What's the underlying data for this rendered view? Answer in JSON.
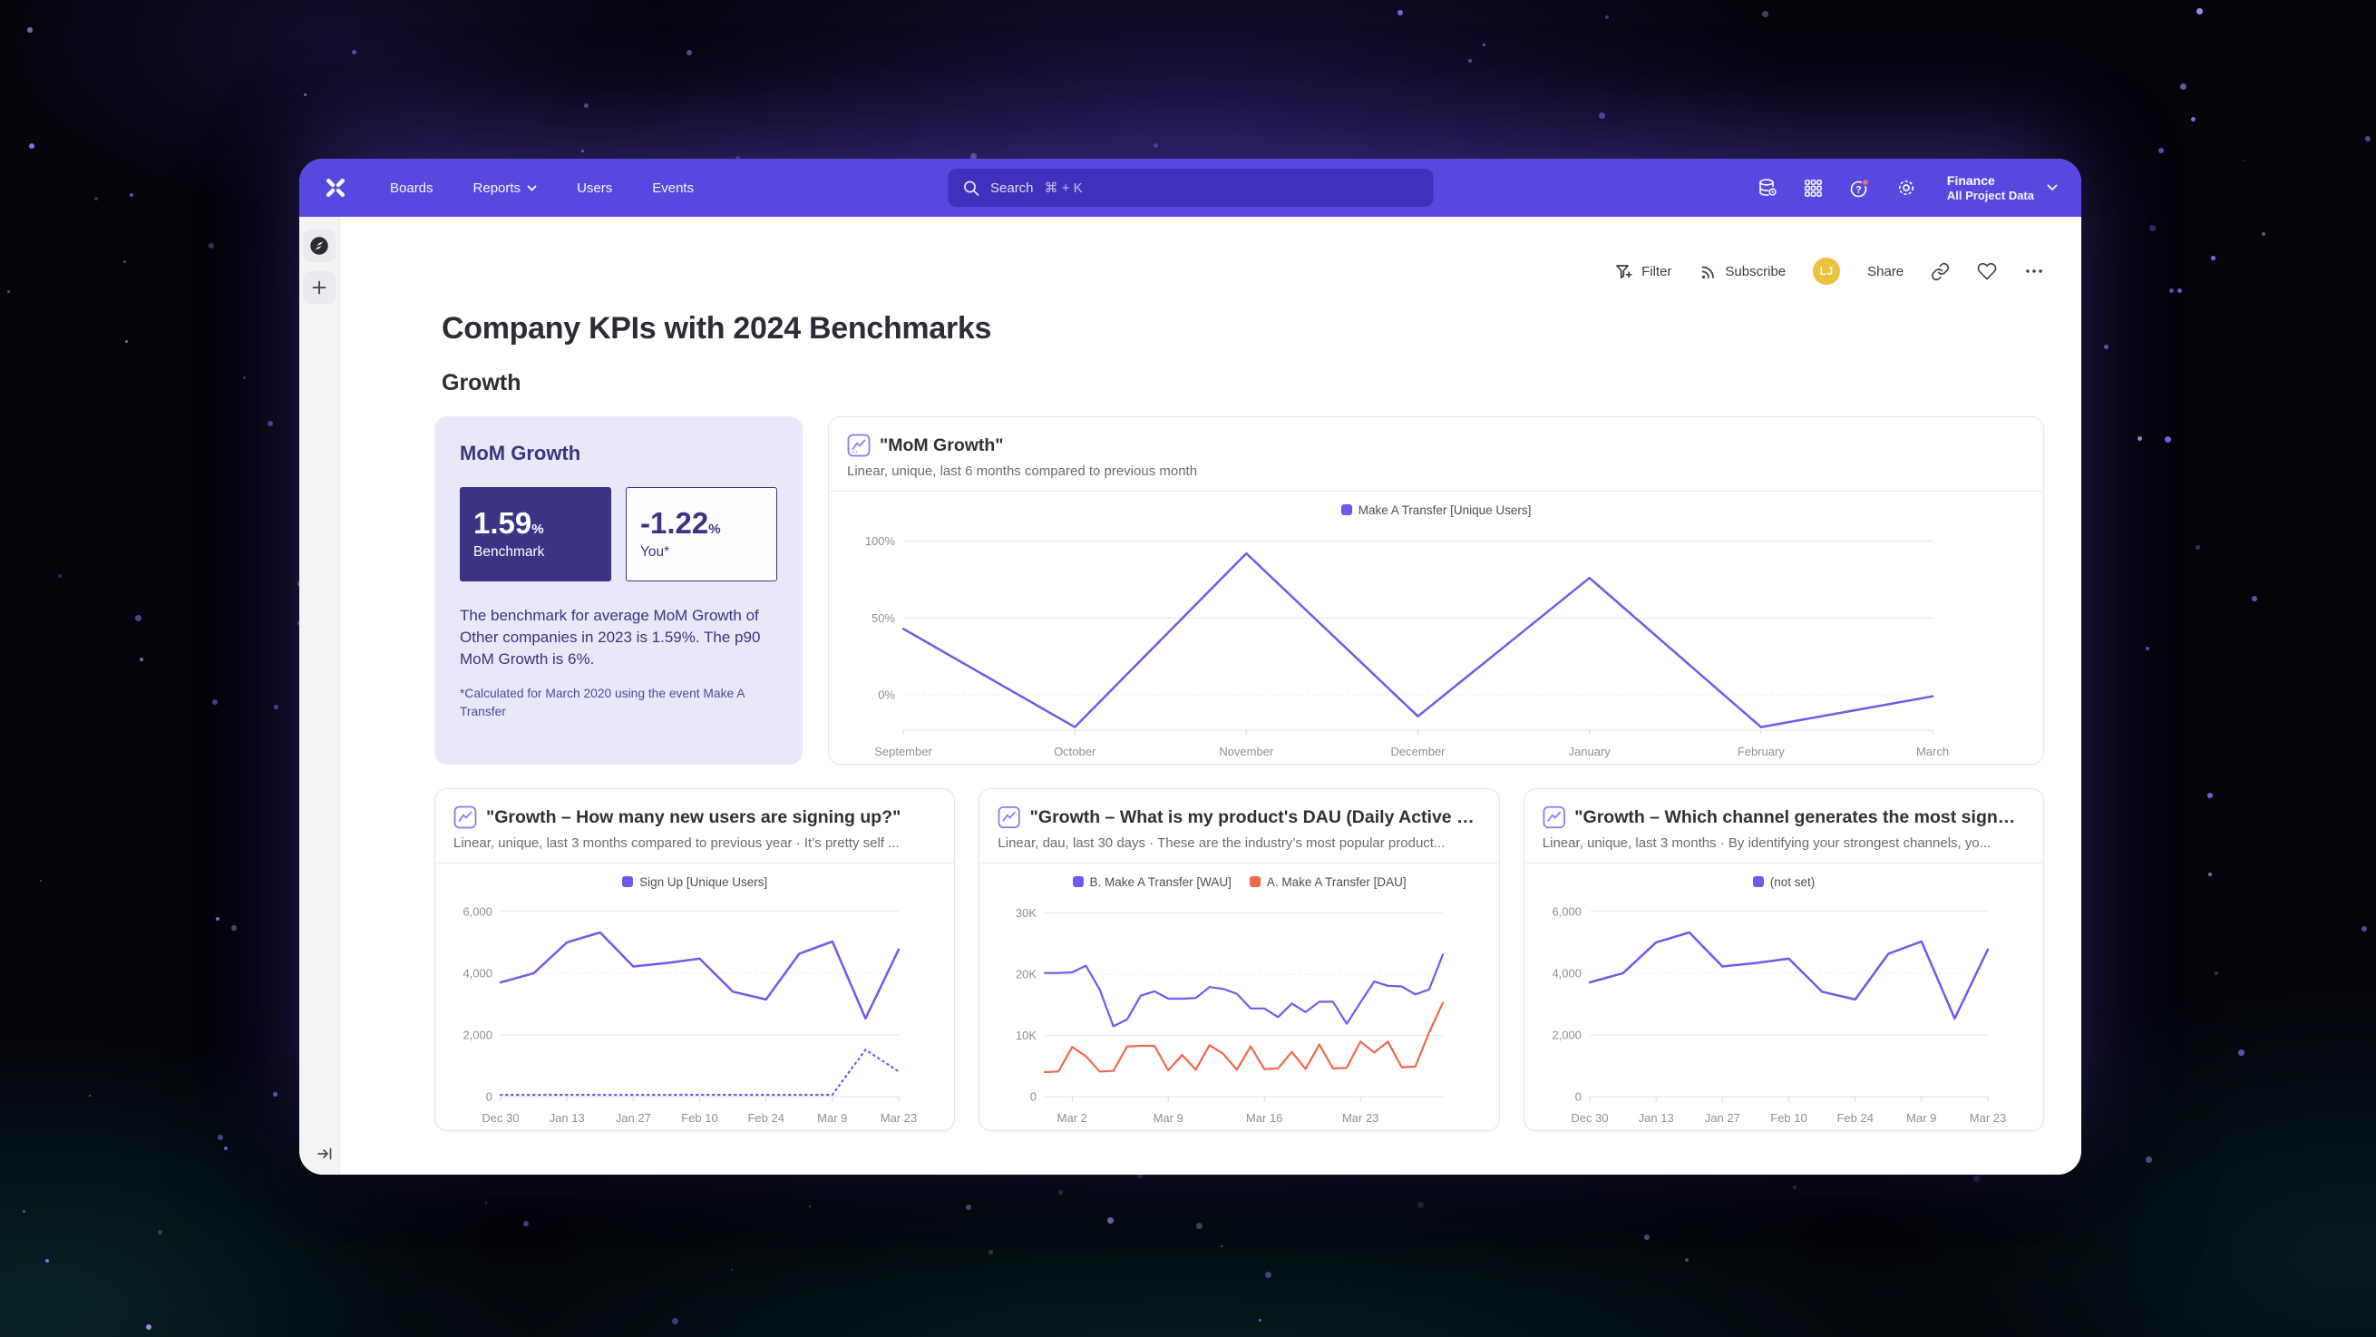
{
  "nav": {
    "items": [
      {
        "label": "Boards"
      },
      {
        "label": "Reports",
        "has_chevron": true
      },
      {
        "label": "Users"
      },
      {
        "label": "Events"
      }
    ],
    "search": {
      "label": "Search",
      "shortcut": "⌘ + K"
    },
    "project": {
      "name": "Finance",
      "scope": "All Project Data"
    }
  },
  "toolbar": {
    "filter_label": "Filter",
    "subscribe_label": "Subscribe",
    "avatar_initials": "LJ",
    "share_label": "Share"
  },
  "page": {
    "title": "Company KPIs with 2024 Benchmarks",
    "section_heading": "Growth"
  },
  "benchmark_card": {
    "title": "MoM Growth",
    "benchmark_value": "1.59",
    "benchmark_unit": "%",
    "benchmark_label": "Benchmark",
    "you_value": "-1.22",
    "you_unit": "%",
    "you_label": "You*",
    "description": "The benchmark for average MoM Growth of Other companies in 2023 is 1.59%. The p90 MoM Growth is 6%.",
    "footnote": "*Calculated for March 2020 using the event Make A Transfer"
  },
  "icons": {
    "search": "magnifier",
    "data": "database-gear",
    "apps": "grid-3x3",
    "help": "?-circle with orange badge",
    "settings": "gear",
    "filter": "funnel-plus",
    "subscribe": "rss",
    "link": "chain",
    "favorite": "heart",
    "more": "•••",
    "compass": "compass",
    "add": "+",
    "collapse": "→|",
    "chevron": "▾"
  },
  "colors": {
    "nav": "#5748e0",
    "accent_purple": "#6e5bed",
    "orange": "#f2684b",
    "navy": "#3b3383",
    "card_lavender": "#e9e8f8",
    "avatar_yellow": "#edc33d"
  },
  "charts": [
    {
      "id": "mom-growth",
      "type": "line",
      "title": "\"MoM Growth\"",
      "subtitle": "Linear, unique, last 6 months compared to previous month",
      "categories": [
        "September",
        "October",
        "November",
        "December",
        "January",
        "February",
        "March"
      ],
      "series": [
        {
          "name": "Make A Transfer [Unique Users]",
          "color": "#6e5bed",
          "values": [
            43,
            -21,
            92,
            -14,
            76,
            -21,
            -1
          ]
        }
      ],
      "ylim": [
        -23,
        108
      ],
      "yticks": [
        {
          "label": "100%",
          "value": 100
        },
        {
          "label": "50%",
          "value": 50
        },
        {
          "label": "0%",
          "value": 0,
          "dashed": true
        }
      ],
      "xtick_indices": [
        0,
        1,
        2,
        3,
        4,
        5,
        6
      ],
      "legend_position": "top-center",
      "grid": true
    },
    {
      "id": "new-user-signups",
      "type": "line",
      "title": "\"Growth – How many new users are signing up?\"",
      "subtitle": "Linear, unique, last 3 months compared to previous year · It’s pretty self ...",
      "categories": [
        "Dec 30",
        "Jan 6",
        "Jan 13",
        "Jan 20",
        "Jan 27",
        "Feb 3",
        "Feb 10",
        "Feb 17",
        "Feb 24",
        "Mar 2",
        "Mar 9",
        "Mar 16",
        "Mar 23"
      ],
      "series": [
        {
          "name": "Sign Up [Unique Users]",
          "color": "#6e5bed",
          "values": [
            3700,
            4000,
            5000,
            5320,
            4220,
            4330,
            4470,
            3400,
            3150,
            4630,
            5030,
            2530,
            4770
          ]
        },
        {
          "name": "Sign Up [Unique Users] — previous year",
          "color": "#6e5bed",
          "dashed": true,
          "hide_legend": true,
          "values": [
            60,
            60,
            60,
            60,
            60,
            60,
            60,
            60,
            60,
            60,
            60,
            1520,
            815
          ]
        }
      ],
      "ylim": [
        0,
        6350
      ],
      "yticks": [
        {
          "label": "6,000",
          "value": 6000
        },
        {
          "label": "4,000",
          "value": 4000,
          "dashed": true
        },
        {
          "label": "2,000",
          "value": 2000
        },
        {
          "label": "0",
          "value": 0
        }
      ],
      "xtick_indices": [
        0,
        2,
        4,
        6,
        8,
        10,
        12
      ],
      "legend_position": "top-center",
      "grid": true
    },
    {
      "id": "product-dau",
      "type": "line",
      "title": "\"Growth – What is my product's DAU (Daily Active Us...",
      "subtitle": "Linear, dau, last 30 days · These are the industry’s most popular product...",
      "categories": [
        "Feb 29",
        "Mar 1",
        "Mar 2",
        "Mar 3",
        "Mar 4",
        "Mar 5",
        "Mar 6",
        "Mar 7",
        "Mar 8",
        "Mar 9",
        "Mar 10",
        "Mar 11",
        "Mar 12",
        "Mar 13",
        "Mar 14",
        "Mar 15",
        "Mar 16",
        "Mar 17",
        "Mar 18",
        "Mar 19",
        "Mar 20",
        "Mar 21",
        "Mar 22",
        "Mar 23",
        "Mar 24",
        "Mar 25",
        "Mar 26",
        "Mar 27",
        "Mar 28",
        "Mar 29"
      ],
      "series": [
        {
          "name": "B. Make A Transfer [WAU]",
          "color": "#6e5bed",
          "values": [
            20200,
            20200,
            20300,
            21400,
            17500,
            11500,
            12600,
            16500,
            17200,
            16000,
            16000,
            16100,
            17900,
            17600,
            16800,
            14400,
            14400,
            13000,
            15200,
            13800,
            15500,
            15500,
            11900,
            15400,
            18800,
            18100,
            18000,
            16700,
            17500,
            23200
          ]
        },
        {
          "name": "A. Make A Transfer [DAU]",
          "color": "#f2684b",
          "values": [
            4000,
            4100,
            8100,
            6600,
            4100,
            4200,
            8200,
            8300,
            8300,
            4300,
            6800,
            4400,
            8400,
            7000,
            4400,
            8200,
            4500,
            4600,
            7300,
            4500,
            8500,
            4600,
            4700,
            9000,
            7200,
            9000,
            4800,
            4900,
            10500,
            15300
          ]
        }
      ],
      "ylim": [
        0,
        32000
      ],
      "yticks": [
        {
          "label": "30K",
          "value": 30000
        },
        {
          "label": "20K",
          "value": 20000,
          "dashed": true
        },
        {
          "label": "10K",
          "value": 10000
        },
        {
          "label": "0",
          "value": 0
        }
      ],
      "xtick_indices": [
        2,
        9,
        16,
        23
      ],
      "legend_position": "top-center",
      "grid": true
    },
    {
      "id": "signup-channels",
      "type": "line",
      "title": "\"Growth – Which channel generates the most signup...",
      "subtitle": "Linear, unique, last 3 months · By identifying your strongest channels, yo...",
      "categories": [
        "Dec 30",
        "Jan 6",
        "Jan 13",
        "Jan 20",
        "Jan 27",
        "Feb 3",
        "Feb 10",
        "Feb 17",
        "Feb 24",
        "Mar 2",
        "Mar 9",
        "Mar 16",
        "Mar 23"
      ],
      "series": [
        {
          "name": "(not set)",
          "color": "#6e5bed",
          "values": [
            3700,
            4000,
            5000,
            5320,
            4220,
            4330,
            4470,
            3400,
            3150,
            4630,
            5030,
            2530,
            4770
          ]
        }
      ],
      "ylim": [
        0,
        6350
      ],
      "yticks": [
        {
          "label": "6,000",
          "value": 6000
        },
        {
          "label": "4,000",
          "value": 4000,
          "dashed": true
        },
        {
          "label": "2,000",
          "value": 2000
        },
        {
          "label": "0",
          "value": 0
        }
      ],
      "xtick_indices": [
        0,
        2,
        4,
        6,
        8,
        10,
        12
      ],
      "legend_position": "top-center",
      "grid": true
    }
  ]
}
